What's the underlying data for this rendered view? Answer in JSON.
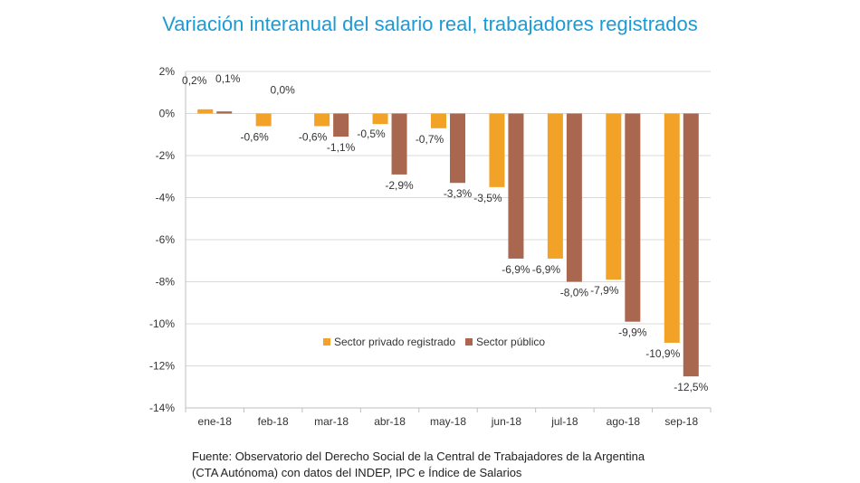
{
  "chart_data": {
    "type": "bar",
    "title": "Variación interanual del salario real, trabajadores registrados",
    "categories": [
      "ene-18",
      "feb-18",
      "mar-18",
      "abr-18",
      "may-18",
      "jun-18",
      "jul-18",
      "ago-18",
      "sep-18"
    ],
    "series": [
      {
        "name": "Sector privado registrado",
        "color": "#f2a227",
        "values": [
          0.2,
          -0.6,
          -0.6,
          -0.5,
          -0.7,
          -3.5,
          -6.9,
          -7.9,
          -10.9
        ],
        "labels": [
          "0,2%",
          "-0,6%",
          "-0,6%",
          "-0,5%",
          "-0,7%",
          "-3,5%",
          "-6,9%",
          "-7,9%",
          "-10,9%"
        ]
      },
      {
        "name": "Sector público",
        "color": "#a9674f",
        "values": [
          0.1,
          0.0,
          -1.1,
          -2.9,
          -3.3,
          -6.9,
          -8.0,
          -9.9,
          -12.5
        ],
        "labels": [
          "0,1%",
          "0,0%",
          "-1,1%",
          "-2,9%",
          "-3,3%",
          "-6,9%",
          "-8,0%",
          "-9,9%",
          "-12,5%"
        ]
      }
    ],
    "y_ticks": [
      2,
      0,
      -2,
      -4,
      -6,
      -8,
      -10,
      -12,
      -14
    ],
    "y_tick_labels": [
      "2%",
      "0%",
      "-2%",
      "-4%",
      "-6%",
      "-8%",
      "-10%",
      "-12%",
      "-14%"
    ],
    "ylim": [
      -14,
      2
    ],
    "grid": true,
    "legend_position": "lower-center"
  },
  "source": {
    "line1": "Fuente: Observatorio del Derecho Social de la Central de Trabajadores de la Argentina",
    "line2": "(CTA Autónoma) con datos del INDEP, IPC e Índice de Salarios"
  }
}
